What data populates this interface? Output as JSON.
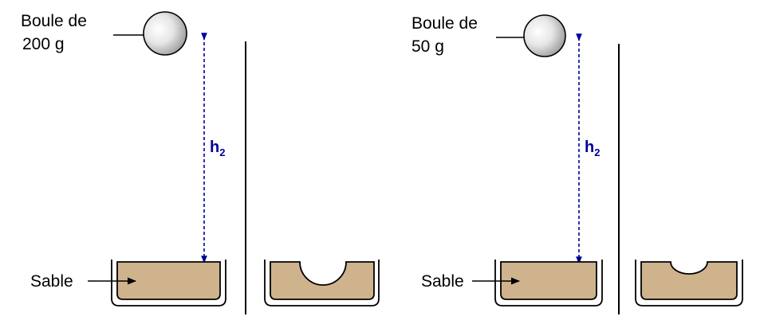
{
  "colors": {
    "sand": "#cfb38c",
    "arrow_blue": "#000099",
    "line": "#000000"
  },
  "left_panel": {
    "ball_label_line1": "Boule de",
    "ball_label_line2": "200 g",
    "height_label": "h",
    "height_sub": "2",
    "sand_label": "Sable"
  },
  "right_panel": {
    "ball_label_line1": "Boule de",
    "ball_label_line2": "50 g",
    "height_label": "h",
    "height_sub": "2",
    "sand_label": "Sable"
  }
}
